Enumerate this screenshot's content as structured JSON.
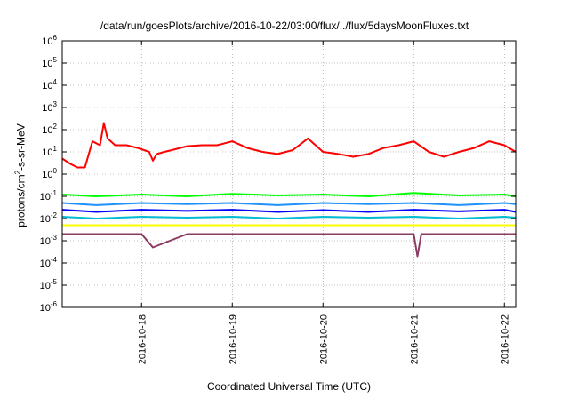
{
  "chart_data": {
    "type": "line",
    "title": "/data/run/goesPlots/archive/2016-10-22/03:00/flux/../flux/5daysMoonFluxes.txt",
    "xlabel": "Coordinated Universal Time (UTC)",
    "ylabel": {
      "prefix": "protons/cm",
      "sup": "2",
      "suffix": "-s-sr-MeV"
    },
    "yscale": "log",
    "ylim": [
      1e-06,
      1000000.0
    ],
    "xlim": [
      "2016-10-17T03:00",
      "2016-10-22T03:00"
    ],
    "grid": true,
    "ytick_labels": [
      {
        "value": 1e-06,
        "base": "10",
        "exp": "-6"
      },
      {
        "value": 1e-05,
        "base": "10",
        "exp": "-5"
      },
      {
        "value": 0.0001,
        "base": "10",
        "exp": "-4"
      },
      {
        "value": 0.001,
        "base": "10",
        "exp": "-3"
      },
      {
        "value": 0.01,
        "base": "10",
        "exp": "-2"
      },
      {
        "value": 0.1,
        "base": "10",
        "exp": "-1"
      },
      {
        "value": 1,
        "base": "10",
        "exp": "0"
      },
      {
        "value": 10,
        "base": "10",
        "exp": "1"
      },
      {
        "value": 100,
        "base": "10",
        "exp": "2"
      },
      {
        "value": 1000,
        "base": "10",
        "exp": "3"
      },
      {
        "value": 10000,
        "base": "10",
        "exp": "4"
      },
      {
        "value": 100000,
        "base": "10",
        "exp": "5"
      },
      {
        "value": 1000000,
        "base": "10",
        "exp": "6"
      }
    ],
    "xtick_labels": [
      "2016-10-18",
      "2016-10-19",
      "2016-10-20",
      "2016-10-21",
      "2016-10-22"
    ],
    "series": [
      {
        "color": "#ff0000",
        "width": 2,
        "x": [
          "2016-10-17T03:00",
          "2016-10-17T05:00",
          "2016-10-17T07:00",
          "2016-10-17T09:00",
          "2016-10-17T11:00",
          "2016-10-17T13:00",
          "2016-10-17T14:00",
          "2016-10-17T15:00",
          "2016-10-17T17:00",
          "2016-10-17T20:00",
          "2016-10-17T23:00",
          "2016-10-18T02:00",
          "2016-10-18T03:00",
          "2016-10-18T04:00",
          "2016-10-18T06:00",
          "2016-10-18T08:00",
          "2016-10-18T12:00",
          "2016-10-18T16:00",
          "2016-10-18T20:00",
          "2016-10-19T00:00",
          "2016-10-19T04:00",
          "2016-10-19T08:00",
          "2016-10-19T12:00",
          "2016-10-19T16:00",
          "2016-10-19T20:00",
          "2016-10-20T00:00",
          "2016-10-20T04:00",
          "2016-10-20T08:00",
          "2016-10-20T12:00",
          "2016-10-20T16:00",
          "2016-10-20T20:00",
          "2016-10-21T00:00",
          "2016-10-21T04:00",
          "2016-10-21T08:00",
          "2016-10-21T12:00",
          "2016-10-21T16:00",
          "2016-10-21T20:00",
          "2016-10-22T00:00",
          "2016-10-22T03:00"
        ],
        "y": [
          5,
          3,
          2,
          2,
          30,
          20,
          200,
          40,
          20,
          20,
          15,
          10,
          4,
          8,
          10,
          12,
          18,
          20,
          20,
          30,
          15,
          10,
          8,
          12,
          40,
          10,
          8,
          6,
          8,
          15,
          20,
          30,
          10,
          6,
          10,
          15,
          30,
          20,
          10
        ]
      },
      {
        "color": "#00ff00",
        "width": 2,
        "x": [
          "2016-10-17T03:00",
          "2016-10-17T12:00",
          "2016-10-18T00:00",
          "2016-10-18T12:00",
          "2016-10-19T00:00",
          "2016-10-19T12:00",
          "2016-10-20T00:00",
          "2016-10-20T12:00",
          "2016-10-21T00:00",
          "2016-10-21T12:00",
          "2016-10-22T00:00",
          "2016-10-22T03:00"
        ],
        "y": [
          0.12,
          0.1,
          0.12,
          0.1,
          0.13,
          0.11,
          0.12,
          0.1,
          0.14,
          0.11,
          0.12,
          0.1
        ]
      },
      {
        "color": "#1e90ff",
        "width": 2,
        "x": [
          "2016-10-17T03:00",
          "2016-10-17T12:00",
          "2016-10-18T00:00",
          "2016-10-18T12:00",
          "2016-10-19T00:00",
          "2016-10-19T12:00",
          "2016-10-20T00:00",
          "2016-10-20T12:00",
          "2016-10-21T00:00",
          "2016-10-21T12:00",
          "2016-10-22T00:00",
          "2016-10-22T03:00"
        ],
        "y": [
          0.05,
          0.04,
          0.05,
          0.045,
          0.05,
          0.04,
          0.05,
          0.045,
          0.05,
          0.04,
          0.05,
          0.045
        ]
      },
      {
        "color": "#0000ff",
        "width": 2,
        "x": [
          "2016-10-17T03:00",
          "2016-10-17T12:00",
          "2016-10-18T00:00",
          "2016-10-18T12:00",
          "2016-10-19T00:00",
          "2016-10-19T12:00",
          "2016-10-20T00:00",
          "2016-10-20T12:00",
          "2016-10-21T00:00",
          "2016-10-21T12:00",
          "2016-10-22T00:00",
          "2016-10-22T03:00"
        ],
        "y": [
          0.025,
          0.02,
          0.025,
          0.022,
          0.025,
          0.02,
          0.024,
          0.02,
          0.025,
          0.021,
          0.025,
          0.02
        ]
      },
      {
        "color": "#00bcd4",
        "width": 2,
        "x": [
          "2016-10-17T03:00",
          "2016-10-17T12:00",
          "2016-10-18T00:00",
          "2016-10-18T12:00",
          "2016-10-19T00:00",
          "2016-10-19T12:00",
          "2016-10-20T00:00",
          "2016-10-20T12:00",
          "2016-10-21T00:00",
          "2016-10-21T12:00",
          "2016-10-22T00:00",
          "2016-10-22T03:00"
        ],
        "y": [
          0.012,
          0.01,
          0.012,
          0.011,
          0.012,
          0.01,
          0.012,
          0.011,
          0.012,
          0.01,
          0.012,
          0.011
        ]
      },
      {
        "color": "#ffff00",
        "width": 2,
        "x": [
          "2016-10-17T03:00",
          "2016-10-17T12:00",
          "2016-10-18T00:00",
          "2016-10-18T12:00",
          "2016-10-19T00:00",
          "2016-10-19T12:00",
          "2016-10-20T00:00",
          "2016-10-20T12:00",
          "2016-10-21T00:00",
          "2016-10-21T12:00",
          "2016-10-22T00:00",
          "2016-10-22T03:00"
        ],
        "y": [
          0.005,
          0.005,
          0.005,
          0.005,
          0.005,
          0.005,
          0.005,
          0.005,
          0.005,
          0.005,
          0.005,
          0.005
        ]
      },
      {
        "color": "#8b3a62",
        "width": 2,
        "x": [
          "2016-10-17T03:00",
          "2016-10-17T12:00",
          "2016-10-18T00:00",
          "2016-10-18T03:00",
          "2016-10-18T12:00",
          "2016-10-19T00:00",
          "2016-10-19T12:00",
          "2016-10-20T00:00",
          "2016-10-20T12:00",
          "2016-10-21T00:00",
          "2016-10-21T01:00",
          "2016-10-21T02:00",
          "2016-10-21T12:00",
          "2016-10-22T00:00",
          "2016-10-22T03:00"
        ],
        "y": [
          0.002,
          0.002,
          0.002,
          0.0005,
          0.002,
          0.002,
          0.002,
          0.002,
          0.002,
          0.002,
          0.0002,
          0.002,
          0.002,
          0.002,
          0.002
        ]
      }
    ]
  }
}
